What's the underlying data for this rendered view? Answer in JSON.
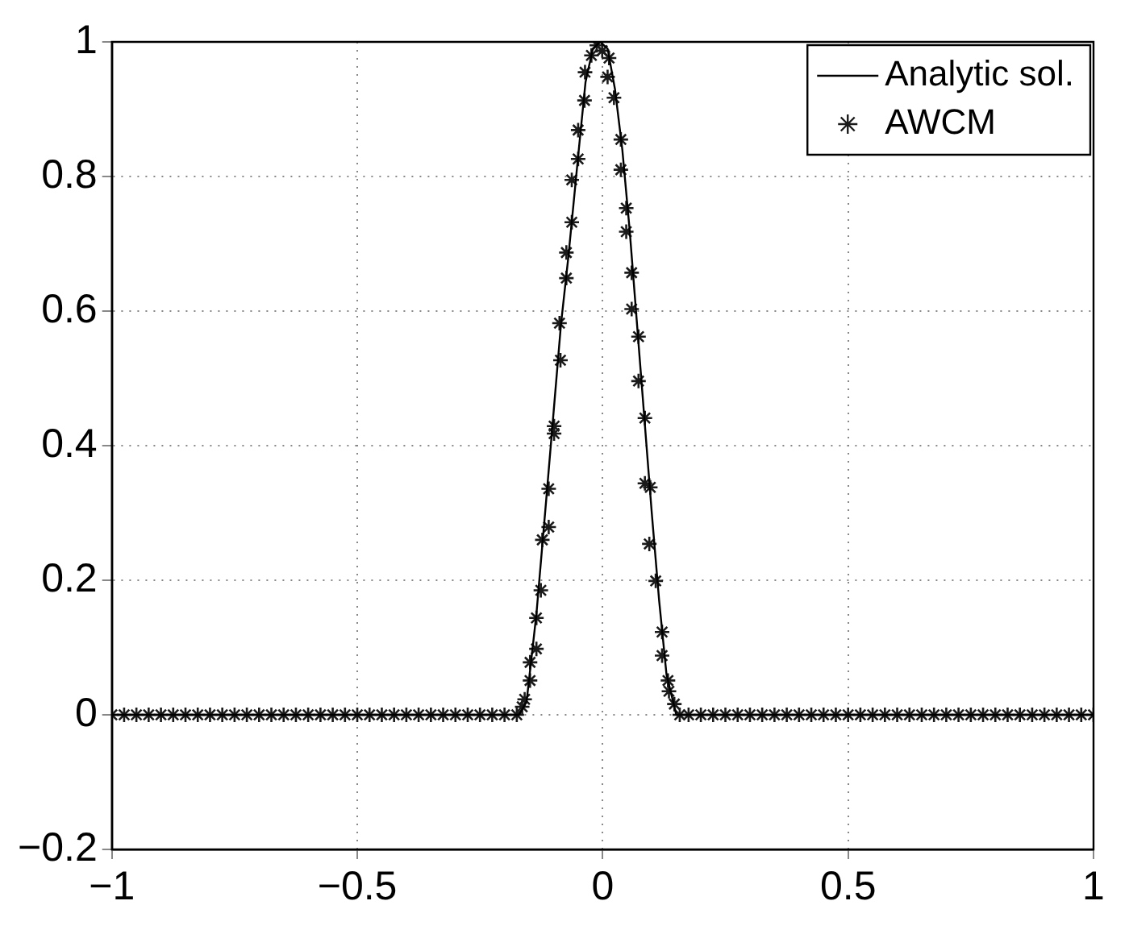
{
  "chart_data": {
    "type": "line",
    "xlim": [
      -1,
      1
    ],
    "xticks": [
      -1,
      -0.5,
      0,
      0.5,
      1
    ],
    "ylim": [
      -0.2,
      1
    ],
    "yticks": [
      -0.2,
      0,
      0.2,
      0.4,
      0.6,
      0.8,
      1
    ],
    "grid": true,
    "legend": "top right",
    "series": [
      {
        "name": "Analytic sol.",
        "color": "#000000",
        "marker": "none",
        "line_style": "solid",
        "x": [
          -1,
          -0.17,
          -0.155,
          -0.135,
          -0.115,
          -0.1,
          -0.085,
          -0.07,
          -0.05,
          -0.035,
          -0.02,
          -0.005,
          0.01,
          0.025,
          0.04,
          0.055,
          0.07,
          0.085,
          0.1,
          0.115,
          0.13,
          0.15,
          1
        ],
        "values": [
          0,
          0,
          0.02,
          0.15,
          0.32,
          0.45,
          0.58,
          0.68,
          0.83,
          0.94,
          0.99,
          1,
          0.99,
          0.93,
          0.84,
          0.72,
          0.58,
          0.44,
          0.3,
          0.17,
          0.06,
          0,
          0
        ]
      },
      {
        "name": "AWCM",
        "type": "scatter",
        "color": "#1a1a1a",
        "marker": "cross",
        "x": [
          -1,
          -0.975,
          -0.95,
          -0.925,
          -0.9,
          -0.875,
          -0.85,
          -0.825,
          -0.8,
          -0.775,
          -0.75,
          -0.725,
          -0.7,
          -0.675,
          -0.65,
          -0.625,
          -0.6,
          -0.575,
          -0.55,
          -0.525,
          -0.5,
          -0.475,
          -0.45,
          -0.425,
          -0.4,
          -0.375,
          -0.35,
          -0.325,
          -0.3,
          -0.275,
          -0.25,
          -0.225,
          -0.2,
          -0.175,
          -0.164,
          -0.159,
          -0.148,
          -0.148,
          -0.135,
          -0.135,
          -0.126,
          -0.123,
          -0.11,
          -0.11,
          -0.099,
          -0.099,
          -0.086,
          -0.088,
          -0.074,
          -0.074,
          -0.063,
          -0.063,
          -0.05,
          -0.05,
          -0.037,
          -0.036,
          -0.023,
          -0.012,
          -0.001,
          0.01,
          0.013,
          0.023,
          0.037,
          0.037,
          0.048,
          0.048,
          0.059,
          0.059,
          0.073,
          0.073,
          0.086,
          0.086,
          0.097,
          0.095,
          0.108,
          0.121,
          0.121,
          0.133,
          0.135,
          0.146,
          0.157,
          0.175,
          0.2,
          0.225,
          0.25,
          0.275,
          0.3,
          0.325,
          0.35,
          0.375,
          0.4,
          0.425,
          0.45,
          0.475,
          0.5,
          0.525,
          0.55,
          0.575,
          0.6,
          0.625,
          0.65,
          0.675,
          0.7,
          0.725,
          0.75,
          0.775,
          0.8,
          0.825,
          0.85,
          0.875,
          0.9,
          0.925,
          0.95,
          0.975,
          1
        ],
        "values": [
          0,
          0,
          0,
          0,
          0,
          0,
          0,
          0,
          0,
          0,
          0,
          0,
          0,
          0,
          0,
          0,
          0,
          0,
          0,
          0,
          0,
          0,
          0,
          0,
          0,
          0,
          0,
          0,
          0,
          0,
          0,
          0,
          0,
          0,
          0.012,
          0.023,
          0.051,
          0.078,
          0.098,
          0.144,
          0.185,
          0.26,
          0.279,
          0.336,
          0.418,
          0.429,
          0.527,
          0.582,
          0.649,
          0.687,
          0.732,
          0.795,
          0.826,
          0.869,
          0.913,
          0.955,
          0.98,
          0.995,
          0.987,
          0.948,
          0.976,
          0.917,
          0.855,
          0.81,
          0.753,
          0.718,
          0.657,
          0.603,
          0.562,
          0.496,
          0.441,
          0.344,
          0.338,
          0.254,
          0.199,
          0.123,
          0.088,
          0.051,
          0.035,
          0.016,
          0,
          0,
          0,
          0,
          0,
          0,
          0,
          0,
          0,
          0,
          0,
          0,
          0,
          0,
          0,
          0,
          0,
          0,
          0,
          0,
          0,
          0,
          0,
          0,
          0,
          0,
          0,
          0,
          0,
          0,
          0,
          0,
          0,
          0,
          0
        ]
      }
    ]
  }
}
